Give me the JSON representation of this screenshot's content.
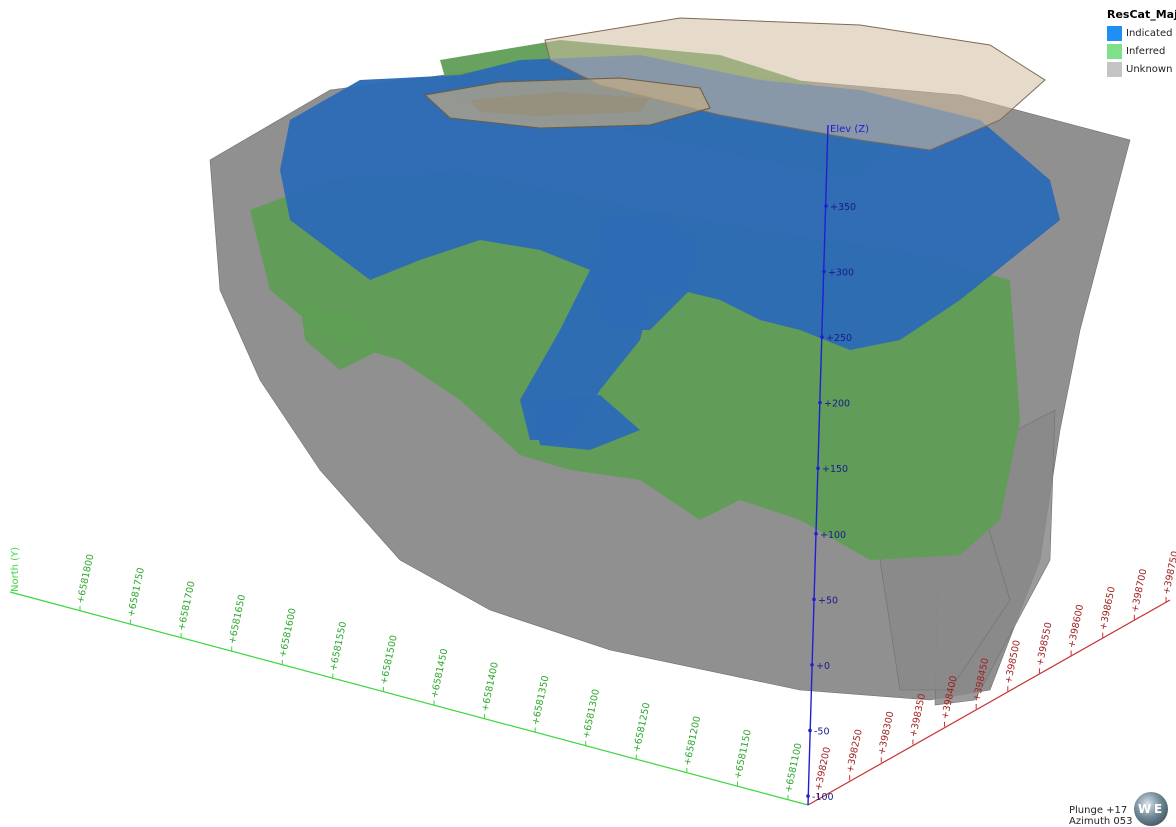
{
  "legend": {
    "title": "ResCat_Maj",
    "items": [
      {
        "label": "Indicated",
        "color": "#1f8ff5"
      },
      {
        "label": "Inferred",
        "color": "#7fe08a"
      },
      {
        "label": "Unknown",
        "color": "#c4c4c4"
      }
    ]
  },
  "axes": {
    "north": {
      "label": "North (Y)",
      "color": "#3dd63d",
      "ticks": [
        "+6581800",
        "+6581750",
        "+6581700",
        "+6581650",
        "+6581600",
        "+6581550",
        "+6581500",
        "+6581450",
        "+6581400",
        "+6581350",
        "+6581300",
        "+6581250",
        "+6581200",
        "+6581150",
        "+6581100"
      ]
    },
    "east": {
      "color": "#c83030",
      "ticks": [
        "+398200",
        "+398250",
        "+398300",
        "+398350",
        "+398400",
        "+398450",
        "+398500",
        "+398550",
        "+398600",
        "+398650",
        "+398700",
        "+398750"
      ]
    },
    "elev": {
      "label": "Elev (Z)",
      "color": "#2020d0",
      "ticks": [
        "-100",
        "-50",
        "+0",
        "+50",
        "+100",
        "+150",
        "+200",
        "+250",
        "+300",
        "+350"
      ]
    }
  },
  "view": {
    "plunge": "Plunge +17",
    "azimuth": "Azimuth 053"
  },
  "colors": {
    "indicated_fill": "#2d6bb5",
    "inferred_fill": "#5f9e55",
    "unknown_fill": "#8a8a8a",
    "pit_fill": "#c9b08a"
  }
}
